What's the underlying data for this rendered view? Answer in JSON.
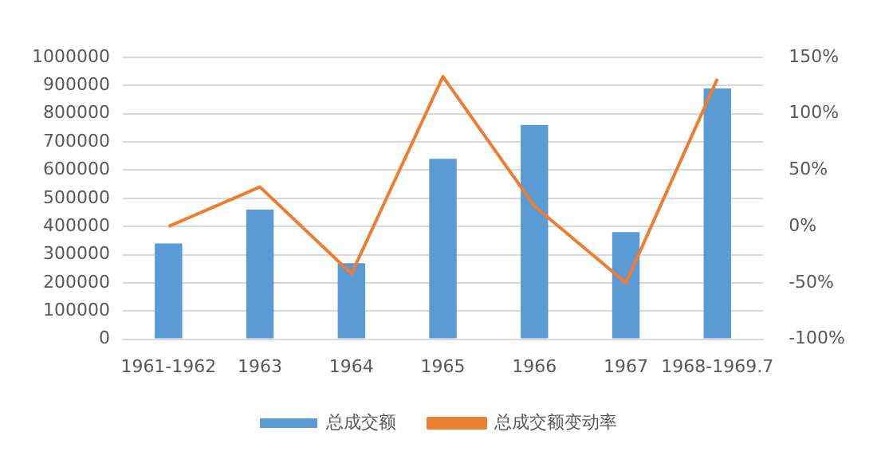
{
  "chart_data": {
    "type": "bar",
    "categories": [
      "1961-1962",
      "1963",
      "1964",
      "1965",
      "1966",
      "1967",
      "1968-1969.7"
    ],
    "series": [
      {
        "name": "总成交额",
        "color": "#5b9bd5",
        "values": [
          340000,
          460000,
          270000,
          640000,
          760000,
          380000,
          890000
        ]
      },
      {
        "name": "总成交额变动率",
        "type": "line",
        "axis": "y2",
        "color": "#ed7d31",
        "values": [
          0,
          35,
          -42,
          133,
          18,
          -50,
          131
        ]
      }
    ],
    "ylim": [
      0,
      1000000
    ],
    "yticks": [
      0,
      100000,
      200000,
      300000,
      400000,
      500000,
      600000,
      700000,
      800000,
      900000,
      1000000
    ],
    "y2lim": [
      -100,
      150
    ],
    "y2ticks": [
      {
        "value": -100,
        "label": "-100%"
      },
      {
        "value": -50,
        "label": "-50%"
      },
      {
        "value": 0,
        "label": "0%"
      },
      {
        "value": 50,
        "label": "50%"
      },
      {
        "value": 100,
        "label": "100%"
      },
      {
        "value": 150,
        "label": "150%"
      }
    ],
    "grid": "y",
    "legend": "bottom",
    "marker": "none"
  }
}
